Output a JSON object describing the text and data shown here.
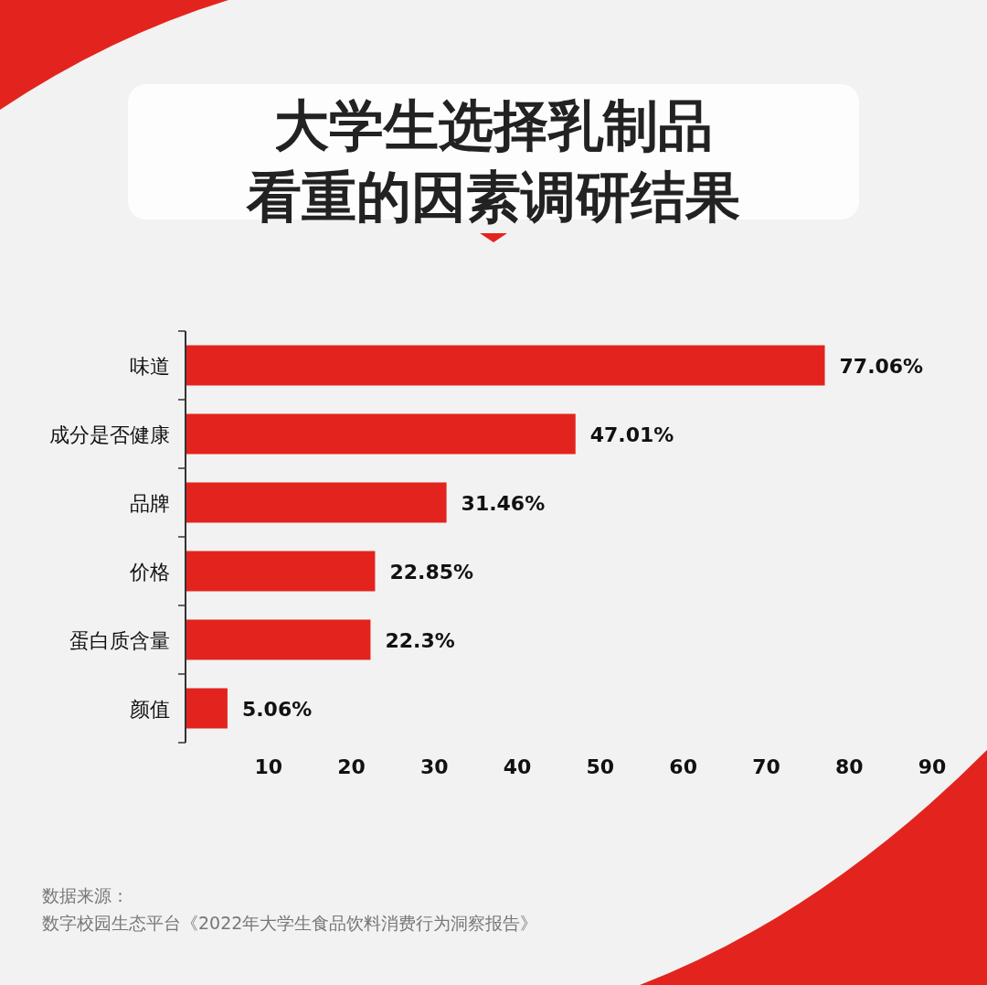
{
  "chart_data": {
    "type": "bar",
    "orientation": "horizontal",
    "title": "大学生选择乳制品看重的因素调研结果",
    "categories": [
      "味道",
      "成分是否健康",
      "品牌",
      "价格",
      "蛋白质含量",
      "颜值"
    ],
    "values": [
      77.06,
      47.01,
      31.46,
      22.85,
      22.3,
      5.06
    ],
    "value_labels": [
      "77.06%",
      "47.01%",
      "31.46%",
      "22.85%",
      "22.3%",
      "5.06%"
    ],
    "color": "#e3241e",
    "xlim": [
      0,
      90
    ],
    "xticks": [
      10,
      20,
      30,
      40,
      50,
      60,
      70,
      80,
      90
    ],
    "grid": false,
    "annotations": [
      "数据来源：",
      "数字校园生态平台《2022年大学生食品饮料消费行为洞察报告》"
    ]
  }
}
